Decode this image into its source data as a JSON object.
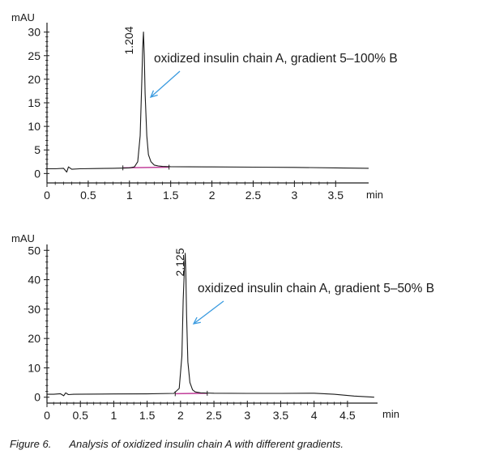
{
  "chart_data": [
    {
      "type": "line",
      "title": "",
      "ylabel": "mAU",
      "xlabel": "min",
      "xlim": [
        0,
        3.9
      ],
      "ylim": [
        -2,
        32
      ],
      "x_ticks": [
        0,
        0.5,
        1,
        1.5,
        2,
        2.5,
        3,
        3.5
      ],
      "x_tick_labels": [
        "0",
        "0.5",
        "1",
        "1.5",
        "2",
        "2.5",
        "3",
        "3.5"
      ],
      "y_ticks": [
        0,
        5,
        10,
        15,
        20,
        25,
        30
      ],
      "y_tick_labels": [
        "0",
        "5",
        "10",
        "15",
        "20",
        "25",
        "30"
      ],
      "peak": {
        "label": "1.204",
        "x": 1.17,
        "y": 30
      },
      "annotation": "oxidized insulin chain A, gradient 5–100% B",
      "integration_baseline": [
        0.92,
        1.48
      ],
      "series": [
        {
          "x": [
            0,
            0.1,
            0.2,
            0.24,
            0.26,
            0.3,
            0.4,
            0.6,
            0.8,
            1.0,
            1.06,
            1.1,
            1.13,
            1.15,
            1.16,
            1.17,
            1.18,
            1.19,
            1.21,
            1.23,
            1.26,
            1.3,
            1.35,
            1.4,
            1.5,
            2.0,
            2.5,
            3.0,
            3.5,
            3.9
          ],
          "y": [
            1.0,
            1.0,
            1.1,
            0.3,
            1.4,
            0.9,
            1.0,
            1.05,
            1.1,
            1.2,
            1.4,
            2.5,
            8,
            20,
            26.5,
            30,
            25,
            17,
            8,
            4,
            2.5,
            1.8,
            1.6,
            1.5,
            1.45,
            1.4,
            1.35,
            1.3,
            1.2,
            1.1
          ]
        }
      ]
    },
    {
      "type": "line",
      "title": "",
      "ylabel": "mAU",
      "xlabel": "min",
      "xlim": [
        0,
        4.95
      ],
      "ylim": [
        -2,
        52
      ],
      "x_ticks": [
        0,
        0.5,
        1,
        1.5,
        2,
        2.5,
        3,
        3.5,
        4,
        4.5
      ],
      "x_tick_labels": [
        "0",
        "0.5",
        "1",
        "1.5",
        "2",
        "2.5",
        "3",
        "3.5",
        "4",
        "4.5"
      ],
      "y_ticks": [
        0,
        10,
        20,
        30,
        40,
        50
      ],
      "y_tick_labels": [
        "0",
        "10",
        "20",
        "30",
        "40",
        "50"
      ],
      "peak": {
        "label": "2.125",
        "x": 2.07,
        "y": 49
      },
      "annotation": "oxidized insulin chain A, gradient 5–50% B",
      "integration_baseline": [
        1.92,
        2.4
      ],
      "series": [
        {
          "x": [
            0,
            0.1,
            0.2,
            0.25,
            0.28,
            0.32,
            0.4,
            0.6,
            1.0,
            1.5,
            1.9,
            1.98,
            2.02,
            2.04,
            2.06,
            2.07,
            2.08,
            2.09,
            2.11,
            2.14,
            2.18,
            2.22,
            2.3,
            2.5,
            3.0,
            3.5,
            4.0,
            4.3,
            4.6,
            4.9
          ],
          "y": [
            1.0,
            1.0,
            1.2,
            0.5,
            1.5,
            0.9,
            1.0,
            1.05,
            1.1,
            1.15,
            1.3,
            3,
            14,
            33,
            45,
            49,
            42,
            28,
            12,
            5,
            2.5,
            1.8,
            1.5,
            1.35,
            1.3,
            1.3,
            1.35,
            1.0,
            0.4,
            0.0
          ]
        }
      ]
    }
  ],
  "caption": {
    "figure": "Figure 6.",
    "text": "Analysis of oxidized insulin chain A with different gradients."
  }
}
